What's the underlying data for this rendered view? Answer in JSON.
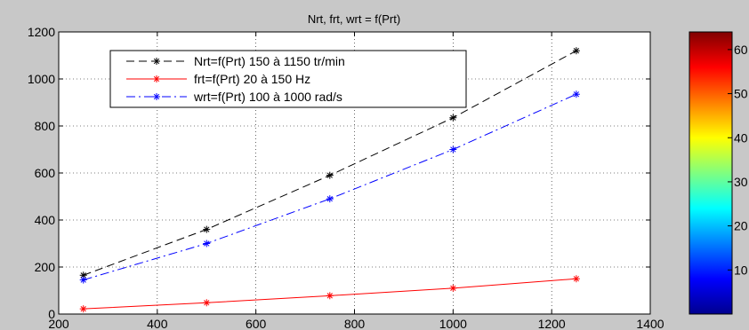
{
  "chart_data": {
    "type": "line",
    "title": "Nrt, frt, wrt = f(Prt)",
    "xlabel": "",
    "ylabel": "",
    "xlim": [
      200,
      1400
    ],
    "ylim": [
      0,
      1200
    ],
    "xticks": [
      200,
      400,
      600,
      800,
      1000,
      1200,
      1400
    ],
    "yticks": [
      0,
      200,
      400,
      600,
      800,
      1000,
      1200
    ],
    "grid": true,
    "legend_position": "top-left",
    "series": [
      {
        "name": "Nrt=f(Prt) 150 à 1150 tr/min",
        "color": "#000000",
        "line_style": "dashed",
        "marker": "asterisk",
        "x": [
          250,
          500,
          750,
          1000,
          1250
        ],
        "y": [
          165,
          360,
          590,
          835,
          1120
        ]
      },
      {
        "name": "frt=f(Prt) 20 à 150 Hz",
        "color": "#ff0000",
        "line_style": "solid",
        "marker": "asterisk",
        "x": [
          250,
          500,
          750,
          1000,
          1250
        ],
        "y": [
          22,
          48,
          78,
          110,
          150
        ]
      },
      {
        "name": "wrt=f(Prt) 100 à 1000 rad/s",
        "color": "#0000ff",
        "line_style": "dashdot",
        "marker": "asterisk",
        "x": [
          250,
          500,
          750,
          1000,
          1250
        ],
        "y": [
          145,
          300,
          490,
          700,
          935
        ]
      }
    ]
  },
  "colorbar": {
    "colormap": "jet",
    "range": [
      0,
      64
    ],
    "tick_labels": [
      "10",
      "20",
      "30",
      "40",
      "50",
      "60"
    ]
  }
}
